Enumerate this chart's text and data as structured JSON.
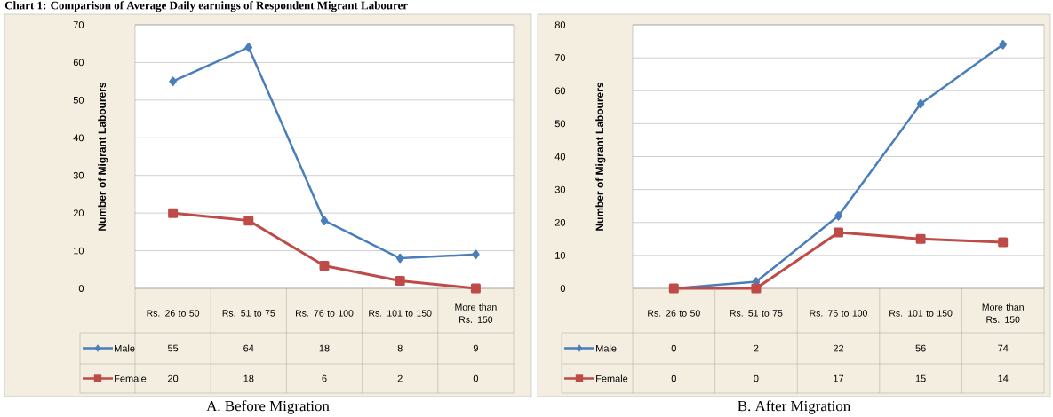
{
  "chart_data": [
    {
      "type": "line",
      "title": "Chart 1: Comparison of Average Daily earnings of Respondent Migrant Labourer",
      "annotations": [
        "A. Before Migration"
      ],
      "ylabel": "Number of Migrant Labourers",
      "categories": [
        "Rs. 26 to 50",
        "Rs. 51 to 75",
        "Rs. 76 to 100",
        "Rs. 101 to 150",
        "More than Rs. 150"
      ],
      "series": [
        {
          "name": "Male",
          "color": "#4a7ebb",
          "marker": "diamond",
          "values": [
            55,
            64,
            18,
            8,
            9
          ]
        },
        {
          "name": "Female",
          "color": "#be4b48",
          "marker": "square",
          "values": [
            20,
            18,
            6,
            2,
            0
          ]
        }
      ],
      "ylim": [
        0,
        70
      ],
      "yticks": [
        0,
        10,
        20,
        30,
        40,
        50,
        60,
        70
      ],
      "grid": "y",
      "legend": "bottom",
      "data_labels": true,
      "line_style": "solid"
    },
    {
      "type": "line",
      "annotations": [
        "B. After Migration"
      ],
      "ylabel": "Number of Migrant Labourers",
      "categories": [
        "Rs. 26 to 50",
        "Rs. 51 to 75",
        "Rs. 76 to 100",
        "Rs. 101 to 150",
        "More than Rs. 150"
      ],
      "series": [
        {
          "name": "Male",
          "color": "#4a7ebb",
          "marker": "diamond",
          "values": [
            0,
            2,
            22,
            56,
            74
          ]
        },
        {
          "name": "Female",
          "color": "#be4b48",
          "marker": "square",
          "values": [
            0,
            0,
            17,
            15,
            14
          ]
        }
      ],
      "ylim": [
        0,
        80
      ],
      "yticks": [
        0,
        10,
        20,
        30,
        40,
        50,
        60,
        70,
        80
      ],
      "grid": "y",
      "legend": "bottom",
      "data_labels": true,
      "line_style": "solid"
    }
  ]
}
